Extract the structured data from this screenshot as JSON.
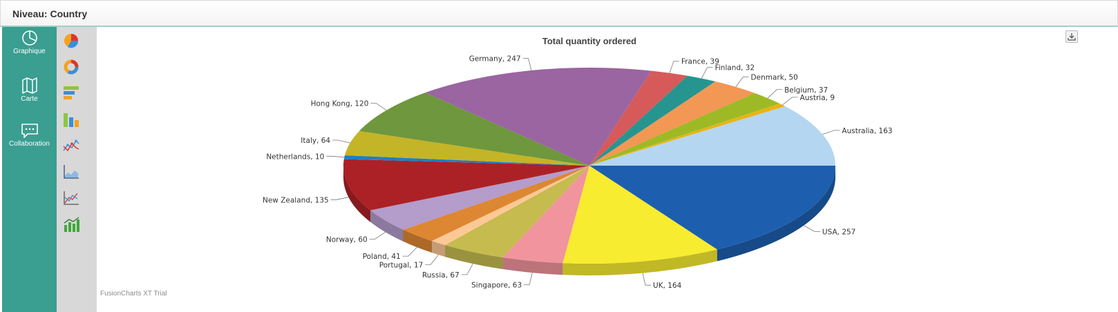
{
  "header": {
    "title": "Niveau: Country"
  },
  "nav": {
    "items": [
      {
        "label": "Graphique",
        "icon": "pie-chart-icon"
      },
      {
        "label": "Carte",
        "icon": "map-icon"
      },
      {
        "label": "Collaboration",
        "icon": "chat-icon"
      }
    ]
  },
  "chart_types": [
    {
      "icon": "pie-3d-icon"
    },
    {
      "icon": "doughnut-icon"
    },
    {
      "icon": "horizontal-bar-icon"
    },
    {
      "icon": "column-icon"
    },
    {
      "icon": "line-icon"
    },
    {
      "icon": "area-icon"
    },
    {
      "icon": "scatter-icon"
    },
    {
      "icon": "combo-icon"
    }
  ],
  "watermark": "FusionCharts XT Trial",
  "chart_data": {
    "type": "pie",
    "title": "Total quantity  ordered",
    "labels": [
      "USA",
      "UK",
      "Singapore",
      "Russia",
      "Portugal",
      "Poland",
      "Norway",
      "New Zealand",
      "Netherlands",
      "Italy",
      "Hong Kong",
      "Germany",
      "France",
      "Finland",
      "Denmark",
      "Belgium",
      "Austria",
      "Australia"
    ],
    "values": [
      257,
      164,
      63,
      67,
      17,
      41,
      60,
      135,
      10,
      64,
      120,
      247,
      39,
      32,
      50,
      37,
      9,
      163
    ],
    "colors": [
      "#1d5fae",
      "#f7ec30",
      "#f1949d",
      "#c6bb4f",
      "#fdc895",
      "#dd8733",
      "#b49ccb",
      "#ac2126",
      "#1e7fc1",
      "#c4b427",
      "#6e973e",
      "#9a65a0",
      "#d65a5a",
      "#27958f",
      "#f39754",
      "#9dba26",
      "#e8b414",
      "#b4d6f0"
    ]
  }
}
